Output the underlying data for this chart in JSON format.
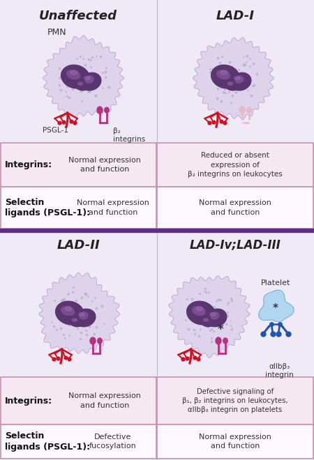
{
  "bg_color": "#e8e2ef",
  "top_section_bg": "#f0eaf8",
  "bot_section_bg": "#f0eaf8",
  "divider_color": "#5c2d82",
  "cell_outer_color": "#ddd4ec",
  "cell_outer_edge": "#c0b0d5",
  "cell_nucleus_dark": "#5a3570",
  "cell_nucleus_mid": "#7a4d90",
  "cell_nucleus_light": "#9b6ab5",
  "cell_cytoplasm_dots": "#b8b0cc",
  "psgl_color": "#cc1122",
  "integrin_normal_color": "#b83080",
  "integrin_absent_color": "#e8b8cc",
  "platelet_body_color": "#aad4f0",
  "platelet_edge_color": "#7ab8e0",
  "platelet_integrin_color": "#2255aa",
  "box_fill_pink": "#f5e8f0",
  "box_fill_white": "#fdf8ff",
  "box_border_pink": "#c890aa",
  "box_border_purple": "#8855aa",
  "title_top_left": "Unaffected",
  "title_top_right": "LAD-I",
  "title_bot_left": "LAD-II",
  "title_bot_right": "LAD-Iv;LAD-III",
  "label_integrins": "Integrins:",
  "label_selectin": "Selectin\nligands (PSGL-1):",
  "text_unaffected_integrin": "Normal expression\nand function",
  "text_lad1_integrin": "Reduced or absent\nexpression of\nβ₂ integrins on leukocytes",
  "text_unaffected_selectin": "Normal expression\nand function",
  "text_lad1_selectin": "Normal expression\nand function",
  "text_lad2_integrin": "Normal expression\nand function",
  "text_lad2_selectin": "Defective\nfucosylation",
  "text_lad3_integrin": "Defective signaling of\nβ₁, β₂ integrins on leukocytes,\nαIIbβ₃ integrin on platelets",
  "text_lad3_selectin": "Normal expression\nand function",
  "pmn_label": "PMN",
  "psgl_label": "PSGL-1",
  "integrin_label": "β₂\nintegrins",
  "platelet_label": "Platelet",
  "alpha_label": "αIIbβ₃\nintegrin"
}
